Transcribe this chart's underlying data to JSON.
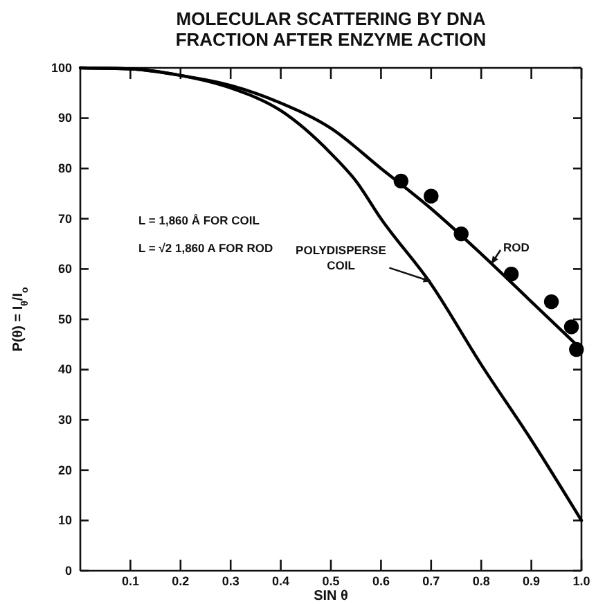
{
  "chart_data": {
    "type": "line",
    "title": "MOLECULAR SCATTERING BY DNA",
    "subtitle": "FRACTION AFTER ENZYME ACTION",
    "xlabel": "SIN θ",
    "ylabel": "P(θ) = I$_{θ}$/I$_{o}$",
    "xlim": [
      0,
      1
    ],
    "ylim": [
      0,
      100
    ],
    "xticks": [
      {
        "value": 0.1,
        "label": "0.1"
      },
      {
        "value": 0.2,
        "label": "0.2"
      },
      {
        "value": 0.3,
        "label": "0.3"
      },
      {
        "value": 0.4,
        "label": "0.4"
      },
      {
        "value": 0.5,
        "label": "0.5"
      },
      {
        "value": 0.6,
        "label": "0.6"
      },
      {
        "value": 0.7,
        "label": "0.7"
      },
      {
        "value": 0.8,
        "label": "0.8"
      },
      {
        "value": 0.9,
        "label": "0.9"
      },
      {
        "value": 1,
        "label": "1.0"
      }
    ],
    "yticks": [
      0,
      10,
      20,
      30,
      40,
      50,
      60,
      70,
      80,
      90,
      100
    ],
    "grid": false,
    "annotations": [
      "L = 1,860 Å FOR COIL",
      "L = √2 1,860 A FOR ROD"
    ],
    "series": [
      {
        "name": "ROD",
        "color": "#000000",
        "x": [
          0,
          0.1,
          0.2,
          0.3,
          0.4,
          0.5,
          0.6,
          0.7,
          0.8,
          0.9,
          1.0
        ],
        "values": [
          100,
          99.8,
          98.5,
          96.5,
          93,
          88,
          80,
          72,
          63,
          53.5,
          44
        ]
      },
      {
        "name": "POLYDISPERSE COIL",
        "color": "#000000",
        "x": [
          0,
          0.1,
          0.2,
          0.3,
          0.4,
          0.5,
          0.55,
          0.6,
          0.7,
          0.8,
          0.9,
          1.0
        ],
        "values": [
          100,
          99.8,
          98.5,
          96,
          91.5,
          83,
          77.5,
          70,
          57,
          41,
          26,
          10
        ]
      },
      {
        "type": "scatter",
        "color": "#000000",
        "marker": "circle",
        "x": [
          0.64,
          0.7,
          0.76,
          0.86,
          0.94,
          0.98,
          0.99
        ],
        "values": [
          77.5,
          74.5,
          67,
          59,
          53.5,
          48.5,
          44
        ]
      }
    ]
  }
}
